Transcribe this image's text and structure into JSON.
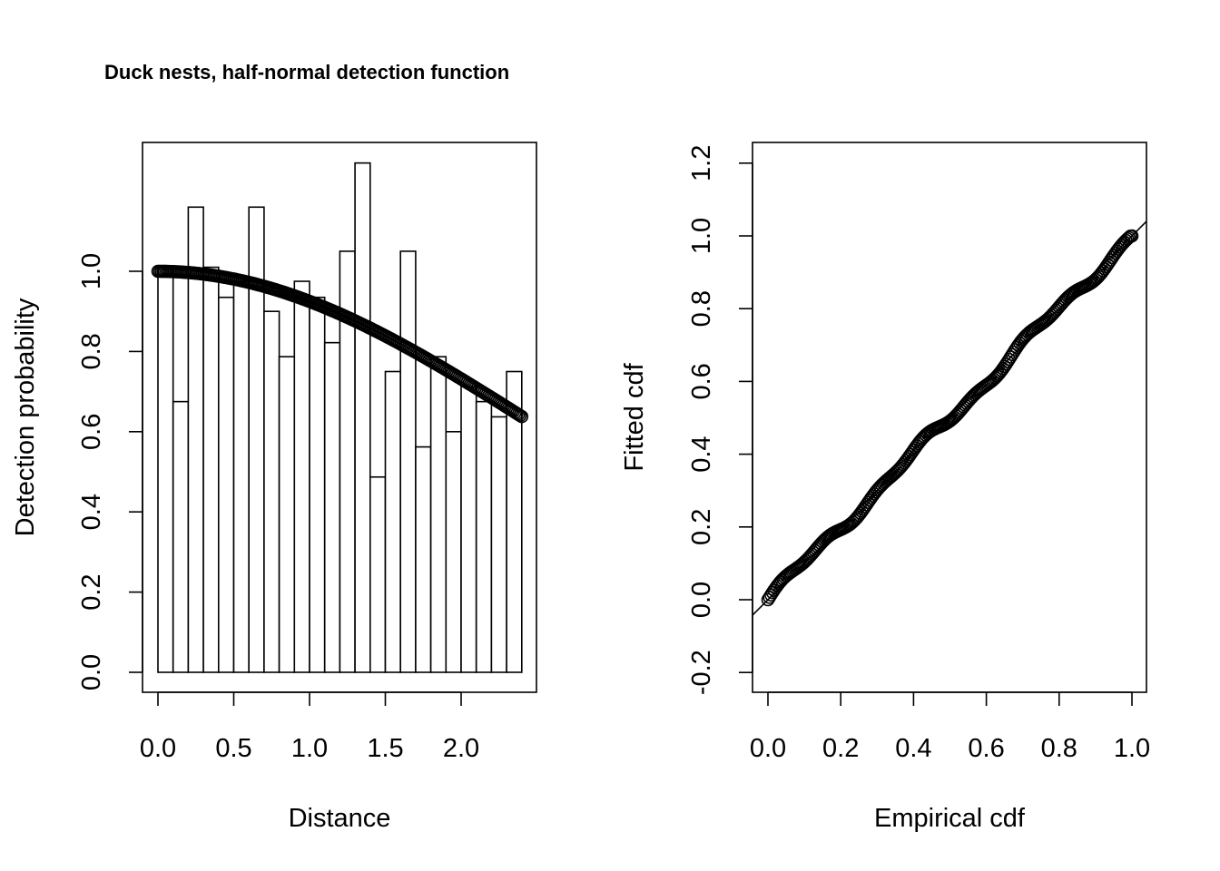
{
  "title": "Duck nests, half-normal detection function",
  "chart_data": [
    {
      "type": "bar",
      "panel": "left",
      "title": "Duck nests, half-normal detection function",
      "xlabel": "Distance",
      "ylabel": "Detection probability",
      "xlim": [
        0.0,
        2.4
      ],
      "ylim": [
        0.0,
        1.28
      ],
      "xticks": [
        "0.0",
        "0.5",
        "1.0",
        "1.5",
        "2.0"
      ],
      "xtick_values": [
        0.0,
        0.5,
        1.0,
        1.5,
        2.0
      ],
      "yticks": [
        "0.0",
        "0.2",
        "0.4",
        "0.6",
        "0.8",
        "1.0"
      ],
      "ytick_values": [
        0.0,
        0.2,
        0.4,
        0.6,
        0.8,
        1.0
      ],
      "bin_width": 0.1,
      "bin_starts": [
        0.0,
        0.1,
        0.2,
        0.3,
        0.4,
        0.5,
        0.6,
        0.7,
        0.8,
        0.9,
        1.0,
        1.1,
        1.2,
        1.3,
        1.4,
        1.5,
        1.6,
        1.7,
        1.8,
        1.9,
        2.0,
        2.1,
        2.2,
        2.3
      ],
      "values": [
        1.01,
        0.675,
        1.16,
        1.01,
        0.935,
        0.975,
        1.16,
        0.9,
        0.787,
        0.975,
        0.935,
        0.822,
        1.05,
        1.27,
        0.487,
        0.75,
        1.05,
        0.562,
        0.787,
        0.6,
        0.712,
        0.675,
        0.637,
        0.75
      ],
      "fitted_curve": {
        "name": "half-normal detection function",
        "form": "exp(-x^2/(2*sigma^2))",
        "sigma": 2.53,
        "x_range": [
          0.0,
          2.4
        ]
      }
    },
    {
      "type": "scatter",
      "panel": "right",
      "xlabel": "Empirical cdf",
      "ylabel": "Fitted cdf",
      "xlim": [
        0.0,
        1.0
      ],
      "ylim": [
        -0.2,
        1.2
      ],
      "xticks": [
        "0.0",
        "0.2",
        "0.4",
        "0.6",
        "0.8",
        "1.0"
      ],
      "xtick_values": [
        0.0,
        0.2,
        0.4,
        0.6,
        0.8,
        1.0
      ],
      "yticks": [
        "-0.2",
        "0.0",
        "0.2",
        "0.4",
        "0.6",
        "0.8",
        "1.0",
        "1.2"
      ],
      "ytick_values": [
        -0.2,
        0.0,
        0.2,
        0.4,
        0.6,
        0.8,
        1.0,
        1.2
      ],
      "reference_line": {
        "intercept": 0,
        "slope": 1
      },
      "points_approx": "dense points along y = x from 0 to 1"
    }
  ]
}
